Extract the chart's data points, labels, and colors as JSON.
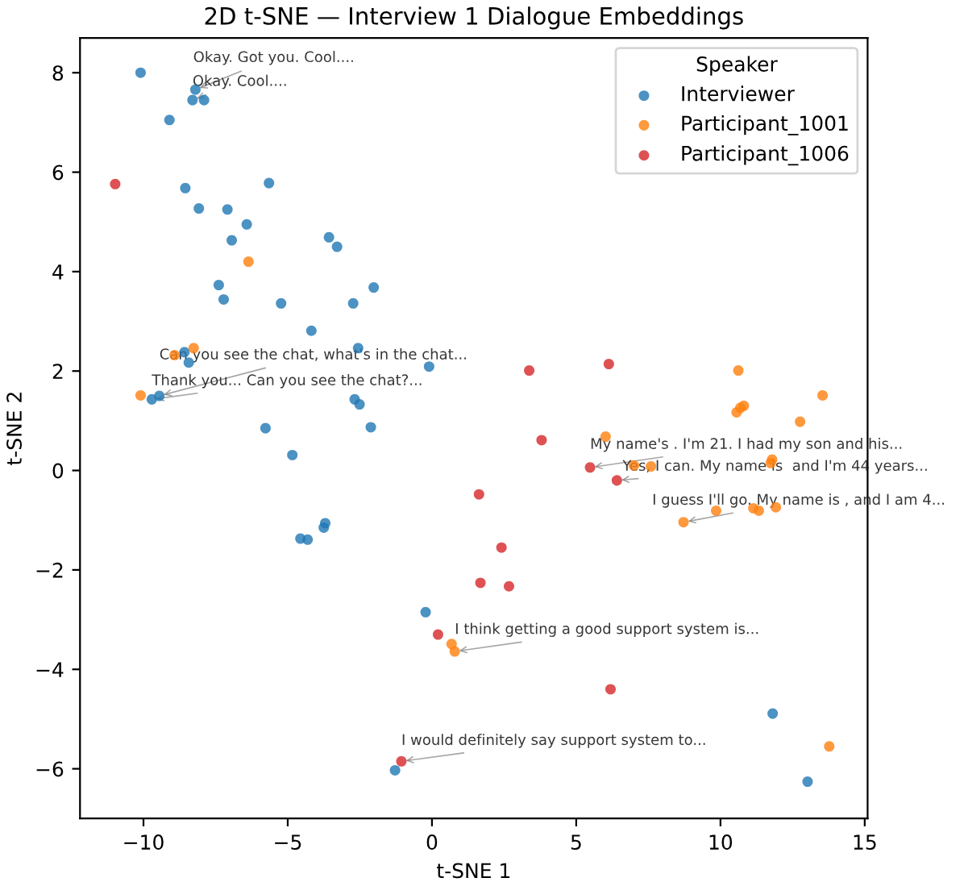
{
  "chart_data": {
    "type": "scatter",
    "title": "2D t-SNE — Interview 1 Dialogue Embeddings",
    "xlabel": "t-SNE 1",
    "ylabel": "t-SNE 2",
    "legend_title": "Speaker",
    "legend": "top right",
    "grid": false,
    "marker": "circle",
    "xlim": [
      -12.2,
      15.1
    ],
    "ylim": [
      -7.0,
      8.7
    ],
    "xticks": [
      {
        "value": -10,
        "label": "−10"
      },
      {
        "value": -5,
        "label": "−5"
      },
      0,
      5,
      10,
      15
    ],
    "yticks": [
      {
        "value": -6,
        "label": "−6"
      },
      {
        "value": -4,
        "label": "−4"
      },
      {
        "value": -2,
        "label": "−2"
      },
      0,
      2,
      4,
      6,
      8
    ],
    "series": [
      {
        "name": "Interviewer",
        "color": "#1f77b4",
        "x": [
          -10.1,
          -8.2,
          -8.3,
          -7.9,
          -9.1,
          -8.55,
          -5.65,
          -8.08,
          -7.09,
          -6.42,
          -6.94,
          -3.57,
          -3.29,
          -7.39,
          -7.22,
          -5.23,
          -2.73,
          -2.02,
          -4.18,
          -2.56,
          -8.58,
          -8.43,
          -0.1,
          -9.45,
          -9.71,
          -2.68,
          -2.51,
          -5.77,
          -2.12,
          -4.84,
          -3.7,
          -3.75,
          -4.56,
          -4.31,
          -0.22,
          -1.28,
          11.81,
          13.02
        ],
        "values": [
          8.0,
          7.66,
          7.45,
          7.45,
          7.05,
          5.68,
          5.78,
          5.27,
          5.25,
          4.95,
          4.63,
          4.69,
          4.5,
          3.73,
          3.44,
          3.36,
          3.36,
          3.68,
          2.81,
          2.46,
          2.38,
          2.17,
          2.09,
          1.5,
          1.43,
          1.43,
          1.33,
          0.85,
          0.87,
          0.31,
          -1.06,
          -1.15,
          -1.37,
          -1.39,
          -2.85,
          -6.03,
          -4.89,
          -6.26
        ]
      },
      {
        "name": "Participant_1001",
        "color": "#ff7f0e",
        "x": [
          -6.36,
          -8.92,
          -8.26,
          -10.1,
          10.62,
          13.54,
          10.81,
          10.69,
          10.56,
          12.76,
          6.02,
          11.79,
          11.74,
          7.0,
          7.59,
          9.85,
          11.14,
          11.33,
          11.92,
          8.72,
          0.68,
          0.79,
          13.77
        ],
        "values": [
          4.2,
          2.32,
          2.46,
          1.51,
          2.01,
          1.51,
          1.3,
          1.26,
          1.17,
          0.98,
          0.68,
          0.22,
          0.15,
          0.1,
          0.08,
          -0.81,
          -0.76,
          -0.81,
          -0.74,
          -1.04,
          -3.49,
          -3.64,
          -5.55
        ]
      },
      {
        "name": "Participant_1006",
        "color": "#d62728",
        "x": [
          -10.98,
          3.37,
          6.13,
          3.8,
          5.48,
          6.41,
          1.63,
          2.41,
          1.68,
          2.67,
          0.21,
          6.19,
          -1.06
        ],
        "values": [
          5.76,
          2.01,
          2.14,
          0.61,
          0.06,
          -0.2,
          -0.48,
          -1.55,
          -2.26,
          -2.33,
          -3.3,
          -4.4,
          -5.85
        ]
      }
    ],
    "annotations": [
      {
        "text": "Okay. Got you. Cool....",
        "x": -8.2,
        "y": 7.66
      },
      {
        "text": "Okay. Cool....",
        "x": -8.3,
        "y": 7.45
      },
      {
        "text": "Can you see the chat, what's in the chat...",
        "x": -9.45,
        "y": 1.5
      },
      {
        "text": "Thank you... Can you see the chat?...",
        "x": -9.71,
        "y": 1.43
      },
      {
        "text": "My name's . I'm 21. I had my son and his...",
        "x": 5.48,
        "y": 0.06
      },
      {
        "text": "Yes, I can. My name is  and I'm 44 years...",
        "x": 6.41,
        "y": -0.2
      },
      {
        "text": "I guess I'll go. My name is , and I am 4...",
        "x": 8.72,
        "y": -1.04
      },
      {
        "text": "I think getting a good support system is...",
        "x": 0.79,
        "y": -3.64
      },
      {
        "text": "I would definitely say support system to...",
        "x": -1.06,
        "y": -5.85
      }
    ]
  }
}
